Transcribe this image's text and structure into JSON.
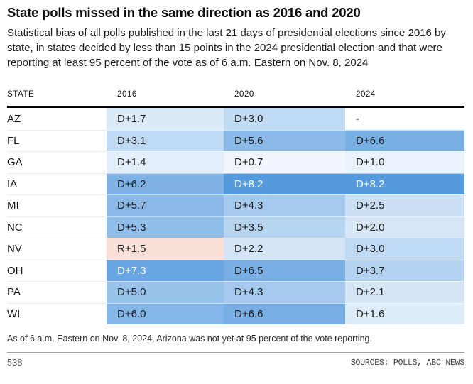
{
  "chart_data": {
    "type": "heatmap",
    "title": "State polls missed in the same direction as 2016 and 2020",
    "subtitle": "Statistical bias of all polls published in the last 21 days of presidential elections since 2016 by state, in states decided by less than 15 points in the 2024 presidential election and that were reporting at least 95 percent of the vote as of 6 a.m. Eastern on Nov. 8, 2024",
    "columns": [
      "STATE",
      "2016",
      "2020",
      "2024"
    ],
    "rows": [
      {
        "state": "AZ",
        "cells": [
          {
            "label": "D+1.7",
            "party": "D",
            "value": 1.7
          },
          {
            "label": "D+3.0",
            "party": "D",
            "value": 3.0
          },
          {
            "label": "-",
            "party": null,
            "value": null
          }
        ]
      },
      {
        "state": "FL",
        "cells": [
          {
            "label": "D+3.1",
            "party": "D",
            "value": 3.1
          },
          {
            "label": "D+5.6",
            "party": "D",
            "value": 5.6
          },
          {
            "label": "D+6.6",
            "party": "D",
            "value": 6.6
          }
        ]
      },
      {
        "state": "GA",
        "cells": [
          {
            "label": "D+1.4",
            "party": "D",
            "value": 1.4
          },
          {
            "label": "D+0.7",
            "party": "D",
            "value": 0.7
          },
          {
            "label": "D+1.0",
            "party": "D",
            "value": 1.0
          }
        ]
      },
      {
        "state": "IA",
        "cells": [
          {
            "label": "D+6.2",
            "party": "D",
            "value": 6.2
          },
          {
            "label": "D+8.2",
            "party": "D",
            "value": 8.2
          },
          {
            "label": "D+8.2",
            "party": "D",
            "value": 8.2
          }
        ]
      },
      {
        "state": "MI",
        "cells": [
          {
            "label": "D+5.7",
            "party": "D",
            "value": 5.7
          },
          {
            "label": "D+4.3",
            "party": "D",
            "value": 4.3
          },
          {
            "label": "D+2.5",
            "party": "D",
            "value": 2.5
          }
        ]
      },
      {
        "state": "NC",
        "cells": [
          {
            "label": "D+5.3",
            "party": "D",
            "value": 5.3
          },
          {
            "label": "D+3.5",
            "party": "D",
            "value": 3.5
          },
          {
            "label": "D+2.0",
            "party": "D",
            "value": 2.0
          }
        ]
      },
      {
        "state": "NV",
        "cells": [
          {
            "label": "R+1.5",
            "party": "R",
            "value": 1.5
          },
          {
            "label": "D+2.2",
            "party": "D",
            "value": 2.2
          },
          {
            "label": "D+3.0",
            "party": "D",
            "value": 3.0
          }
        ]
      },
      {
        "state": "OH",
        "cells": [
          {
            "label": "D+7.3",
            "party": "D",
            "value": 7.3
          },
          {
            "label": "D+6.5",
            "party": "D",
            "value": 6.5
          },
          {
            "label": "D+3.7",
            "party": "D",
            "value": 3.7
          }
        ]
      },
      {
        "state": "PA",
        "cells": [
          {
            "label": "D+5.0",
            "party": "D",
            "value": 5.0
          },
          {
            "label": "D+4.3",
            "party": "D",
            "value": 4.3
          },
          {
            "label": "D+2.1",
            "party": "D",
            "value": 2.1
          }
        ]
      },
      {
        "state": "WI",
        "cells": [
          {
            "label": "D+6.0",
            "party": "D",
            "value": 6.0
          },
          {
            "label": "D+6.6",
            "party": "D",
            "value": 6.6
          },
          {
            "label": "D+1.6",
            "party": "D",
            "value": 1.6
          }
        ]
      }
    ],
    "color_scale": {
      "neutral": "#ffffff",
      "dem_end": "#569ade",
      "rep_end": "#e2572b",
      "max_abs": 8.2,
      "white_text_min": 7.0
    },
    "legend_position": "none",
    "grid": "off"
  },
  "footnote": "As of 6 a.m. Eastern on Nov. 8, 2024, Arizona was not yet at 95 percent of the vote reporting.",
  "footer": {
    "brand": "538",
    "sources": "SOURCES: POLLS, ABC NEWS"
  }
}
